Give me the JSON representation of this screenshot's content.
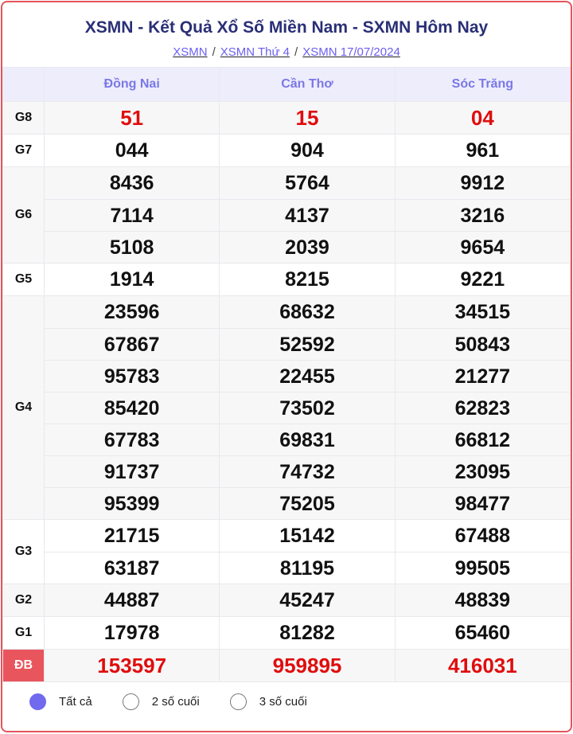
{
  "title": "XSMN - Kết Quả Xổ Số Miền Nam - SXMN Hôm Nay",
  "breadcrumb": [
    "XSMN",
    "XSMN Thứ 4",
    "XSMN 17/07/2024"
  ],
  "breadcrumb_sep": "/",
  "provinces": [
    "Đồng Nai",
    "Cần Thơ",
    "Sóc Trăng"
  ],
  "prizes": [
    {
      "label": "G8",
      "highlight": true,
      "values": [
        [
          "51"
        ],
        [
          "15"
        ],
        [
          "04"
        ]
      ]
    },
    {
      "label": "G7",
      "values": [
        [
          "044"
        ],
        [
          "904"
        ],
        [
          "961"
        ]
      ]
    },
    {
      "label": "G6",
      "values": [
        [
          "8436",
          "7114",
          "5108"
        ],
        [
          "5764",
          "4137",
          "2039"
        ],
        [
          "9912",
          "3216",
          "9654"
        ]
      ]
    },
    {
      "label": "G5",
      "values": [
        [
          "1914"
        ],
        [
          "8215"
        ],
        [
          "9221"
        ]
      ]
    },
    {
      "label": "G4",
      "values": [
        [
          "23596",
          "67867",
          "95783",
          "85420",
          "67783",
          "91737",
          "95399"
        ],
        [
          "68632",
          "52592",
          "22455",
          "73502",
          "69831",
          "74732",
          "75205"
        ],
        [
          "34515",
          "50843",
          "21277",
          "62823",
          "66812",
          "23095",
          "98477"
        ]
      ]
    },
    {
      "label": "G3",
      "values": [
        [
          "21715",
          "63187"
        ],
        [
          "15142",
          "81195"
        ],
        [
          "67488",
          "99505"
        ]
      ]
    },
    {
      "label": "G2",
      "values": [
        [
          "44887"
        ],
        [
          "45247"
        ],
        [
          "48839"
        ]
      ]
    },
    {
      "label": "G1",
      "values": [
        [
          "17978"
        ],
        [
          "81282"
        ],
        [
          "65460"
        ]
      ]
    },
    {
      "label": "ĐB",
      "highlight": true,
      "special": true,
      "values": [
        [
          "153597"
        ],
        [
          "959895"
        ],
        [
          "416031"
        ]
      ]
    }
  ],
  "filter": {
    "options": [
      "Tất cả",
      "2 số cuối",
      "3 số cuối"
    ],
    "selected": 0
  },
  "colors": {
    "accent": "#7169ee",
    "red": "#e00d0d",
    "border": "#e4555b",
    "title": "#2a2f76"
  }
}
